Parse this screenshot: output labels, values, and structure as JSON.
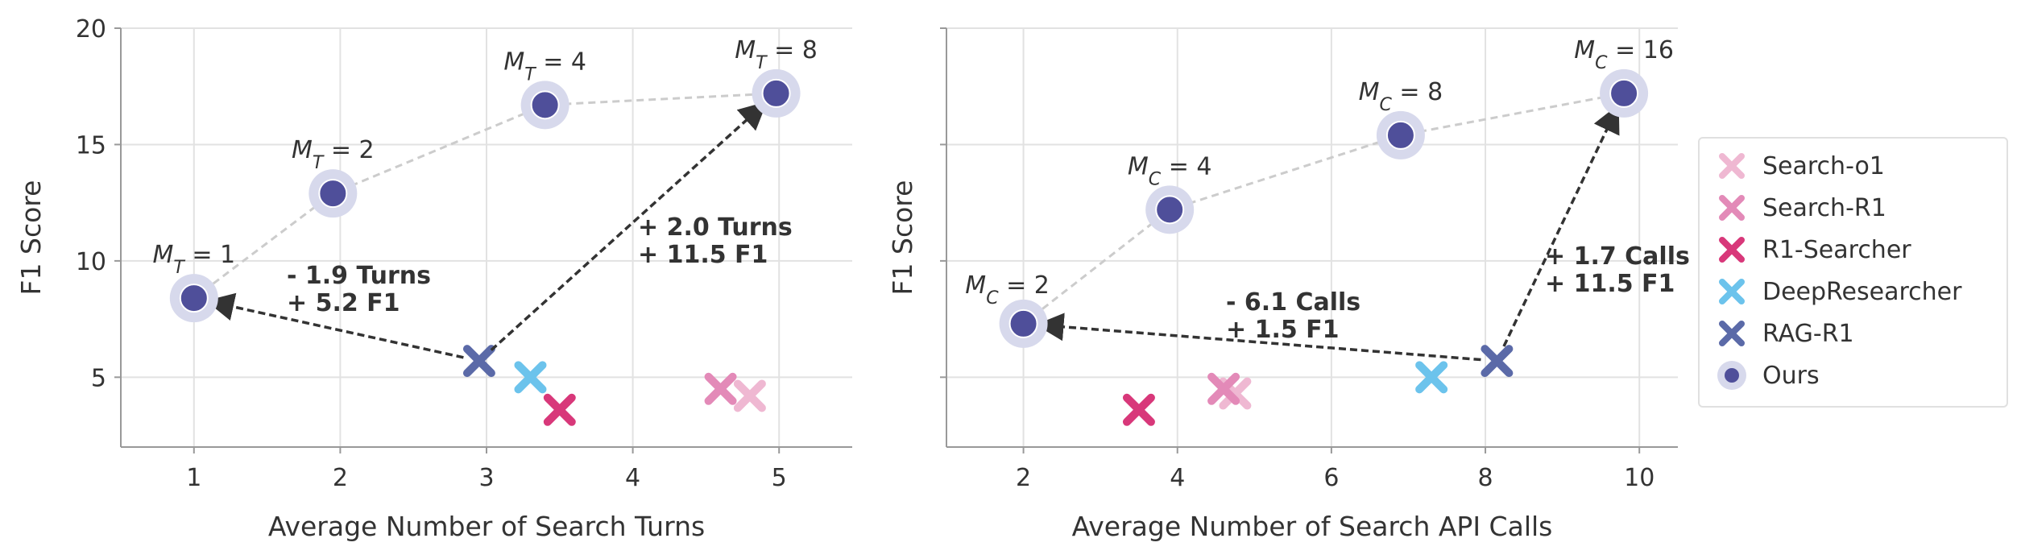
{
  "chart_data": [
    {
      "type": "scatter",
      "xlabel": "Average Number of Search Turns",
      "ylabel": "F1 Score",
      "xlim": [
        0.5,
        5.5
      ],
      "ylim": [
        2,
        20
      ],
      "xticks": [
        "1",
        "2",
        "3",
        "4",
        "5"
      ],
      "yticks": [
        "5",
        "10",
        "15",
        "20"
      ],
      "grid": true,
      "baselines": [
        {
          "name": "Search-o1",
          "x": 4.8,
          "y": 4.2
        },
        {
          "name": "Search-R1",
          "x": 4.6,
          "y": 4.5
        },
        {
          "name": "R1-Searcher",
          "x": 3.5,
          "y": 3.6
        },
        {
          "name": "DeepResearcher",
          "x": 3.3,
          "y": 5.0
        },
        {
          "name": "RAG-R1",
          "x": 2.95,
          "y": 5.7
        }
      ],
      "ours": [
        {
          "x": 1.0,
          "y": 8.4,
          "label": "M_T = 1"
        },
        {
          "x": 1.95,
          "y": 12.9,
          "label": "M_T = 2"
        },
        {
          "x": 3.4,
          "y": 16.7,
          "label": "M_T = 4"
        },
        {
          "x": 4.98,
          "y": 17.2,
          "label": "M_T = 8"
        }
      ],
      "annotations": [
        {
          "line1": "- 1.9 Turns",
          "line2": "+ 5.2 F1"
        },
        {
          "line1": "+ 2.0 Turns",
          "line2": "+ 11.5 F1"
        }
      ]
    },
    {
      "type": "scatter",
      "xlabel": "Average Number of Search API Calls",
      "ylabel": "F1 Score",
      "xlim": [
        1.0,
        10.5
      ],
      "ylim": [
        2,
        20
      ],
      "xticks": [
        "2",
        "4",
        "6",
        "8",
        "10"
      ],
      "yticks": [
        "5",
        "10",
        "15",
        "20"
      ],
      "grid": true,
      "baselines": [
        {
          "name": "Search-o1",
          "x": 4.75,
          "y": 4.3
        },
        {
          "name": "Search-R1",
          "x": 4.6,
          "y": 4.5
        },
        {
          "name": "R1-Searcher",
          "x": 3.5,
          "y": 3.6
        },
        {
          "name": "DeepResearcher",
          "x": 7.3,
          "y": 5.0
        },
        {
          "name": "RAG-R1",
          "x": 8.15,
          "y": 5.7
        }
      ],
      "ours": [
        {
          "x": 2.0,
          "y": 7.3,
          "label": "M_C = 2"
        },
        {
          "x": 3.9,
          "y": 12.2,
          "label": "M_C = 4"
        },
        {
          "x": 6.9,
          "y": 15.4,
          "label": "M_C = 8"
        },
        {
          "x": 9.8,
          "y": 17.2,
          "label": "M_C = 16"
        }
      ],
      "annotations": [
        {
          "line1": "- 6.1 Calls",
          "line2": "+ 1.5 F1"
        },
        {
          "line1": "+ 1.7 Calls",
          "line2": "+ 11.5 F1"
        }
      ]
    }
  ],
  "legend": [
    {
      "name": "Search-o1",
      "color": "#efb8d2"
    },
    {
      "name": "Search-R1",
      "color": "#e38ab8"
    },
    {
      "name": "R1-Searcher",
      "color": "#d8387a"
    },
    {
      "name": "DeepResearcher",
      "color": "#6cc3ec"
    },
    {
      "name": "RAG-R1",
      "color": "#5b6aa8"
    },
    {
      "name": "Ours",
      "color": "#4f4f9a"
    }
  ]
}
